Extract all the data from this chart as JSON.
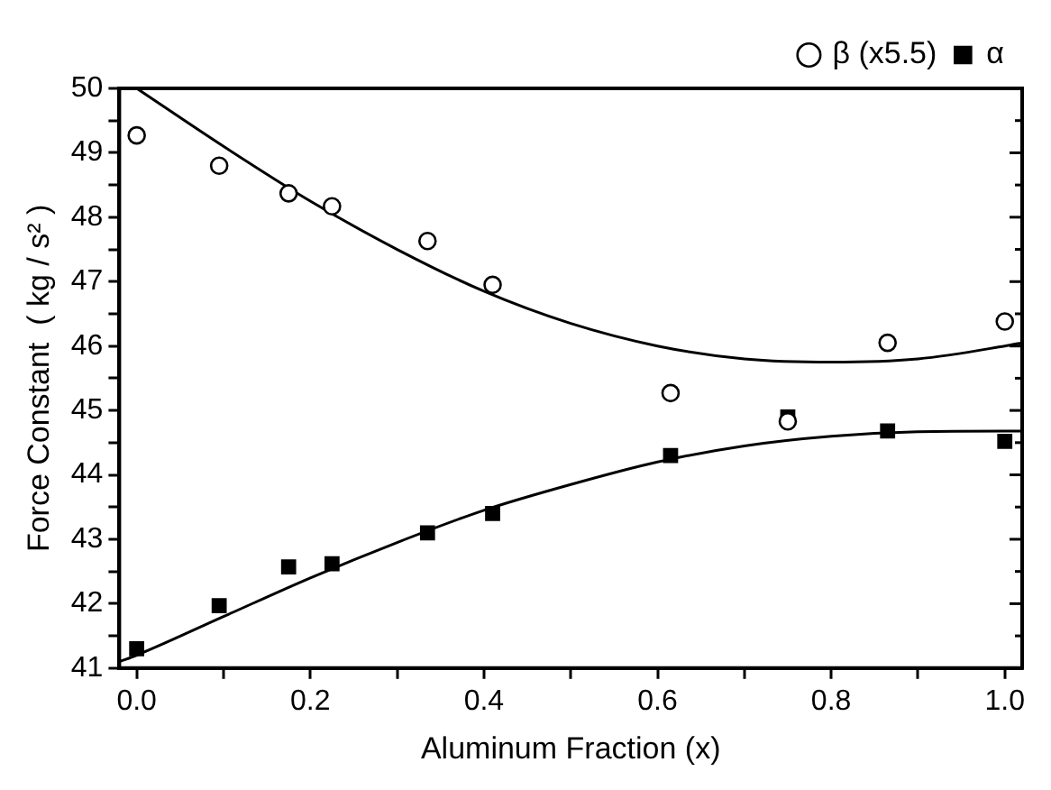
{
  "chart_data": {
    "type": "scatter",
    "xlabel": "Aluminum Fraction (x)",
    "ylabel": "Force Constant  ( kg / s² )",
    "xlim": [
      -0.02,
      1.02
    ],
    "ylim": [
      41,
      50
    ],
    "xticks": [
      {
        "value": 0,
        "label": "0.0"
      },
      {
        "value": 0.1,
        "label": null
      },
      {
        "value": 0.2,
        "label": "0.2"
      },
      {
        "value": 0.3,
        "label": null
      },
      {
        "value": 0.4,
        "label": "0.4"
      },
      {
        "value": 0.5,
        "label": null
      },
      {
        "value": 0.6,
        "label": "0.6"
      },
      {
        "value": 0.7,
        "label": null
      },
      {
        "value": 0.8,
        "label": "0.8"
      },
      {
        "value": 0.9,
        "label": null
      },
      {
        "value": 1,
        "label": "1.0"
      }
    ],
    "yticks": [
      41,
      {
        "value": 41.5,
        "label": null
      },
      42,
      {
        "value": 42.5,
        "label": null
      },
      43,
      {
        "value": 43.5,
        "label": null
      },
      44,
      {
        "value": 44.5,
        "label": null
      },
      45,
      {
        "value": 45.5,
        "label": null
      },
      46,
      {
        "value": 46.5,
        "label": null
      },
      47,
      {
        "value": 47.5,
        "label": null
      },
      48,
      {
        "value": 48.5,
        "label": null
      },
      49,
      {
        "value": 49.5,
        "label": null
      },
      50
    ],
    "grid": false,
    "legend": "top right",
    "series": [
      {
        "name": "α",
        "type": "scatter",
        "marker": "square",
        "color": "#000000",
        "x": [
          0,
          0.095,
          0.175,
          0.225,
          0.335,
          0.41,
          0.615,
          0.75,
          0.865,
          1.0
        ],
        "values": [
          41.3,
          41.97,
          42.57,
          42.62,
          43.1,
          43.4,
          44.3,
          44.9,
          44.68,
          44.52
        ]
      },
      {
        "name": "β (x5.5)",
        "type": "scatter",
        "marker": "circle",
        "color": "#000000",
        "x": [
          0,
          0.095,
          0.175,
          0.225,
          0.335,
          0.41,
          0.615,
          0.75,
          0.865,
          1.0
        ],
        "values": [
          49.27,
          48.8,
          48.37,
          48.17,
          47.63,
          46.95,
          45.27,
          44.83,
          46.05,
          46.38
        ]
      },
      {
        "type": "line",
        "marker": "none",
        "color": "#000000",
        "x": [
          -0.02,
          0,
          0.1,
          0.2,
          0.3,
          0.4,
          0.5,
          0.6,
          0.7,
          0.8,
          0.9,
          1.0,
          1.02
        ],
        "values": [
          41.1,
          41.2,
          41.8,
          42.4,
          42.95,
          43.45,
          43.85,
          44.2,
          44.45,
          44.6,
          44.67,
          44.68,
          44.68
        ]
      },
      {
        "type": "line",
        "marker": "none",
        "color": "#000000",
        "x": [
          0,
          0.1,
          0.2,
          0.3,
          0.4,
          0.5,
          0.6,
          0.7,
          0.8,
          0.9,
          1.0,
          1.02
        ],
        "values": [
          50.0,
          49.1,
          48.25,
          47.5,
          46.85,
          46.35,
          46.0,
          45.8,
          45.75,
          45.8,
          46.0,
          46.05
        ]
      }
    ]
  }
}
